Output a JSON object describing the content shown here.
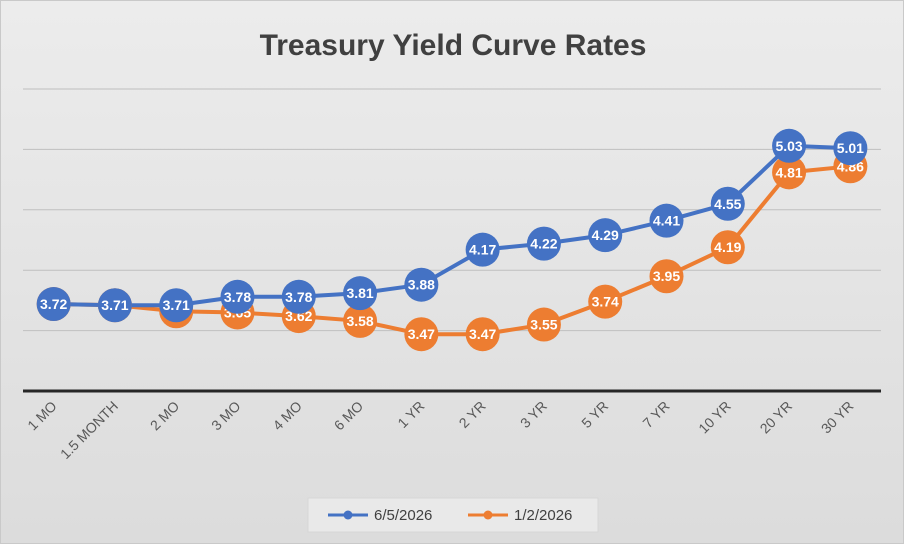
{
  "chart_data": {
    "type": "line",
    "title": "Treasury Yield Curve Rates",
    "categories": [
      "1 MO",
      "1.5 MONTH",
      "2 MO",
      "3 MO",
      "4 MO",
      "6 MO",
      "1 YR",
      "2 YR",
      "3 YR",
      "5 YR",
      "7 YR",
      "10 YR",
      "20 YR",
      "30 YR"
    ],
    "series": [
      {
        "name": "6/5/2026",
        "color": "#4472C4",
        "values": [
          3.72,
          3.71,
          3.71,
          3.78,
          3.78,
          3.81,
          3.88,
          4.17,
          4.22,
          4.29,
          4.41,
          4.55,
          5.03,
          5.01
        ]
      },
      {
        "name": "1/2/2026",
        "color": "#ED7D31",
        "values": [
          3.72,
          3.71,
          3.66,
          3.65,
          3.62,
          3.58,
          3.47,
          3.47,
          3.55,
          3.74,
          3.95,
          4.19,
          4.81,
          4.86
        ]
      }
    ],
    "data_labels": true,
    "y_axis_labels_shown": false,
    "ylim": [
      3.0,
      5.5
    ],
    "grid": true,
    "legend": "bottom",
    "xlabel": "",
    "ylabel": ""
  }
}
